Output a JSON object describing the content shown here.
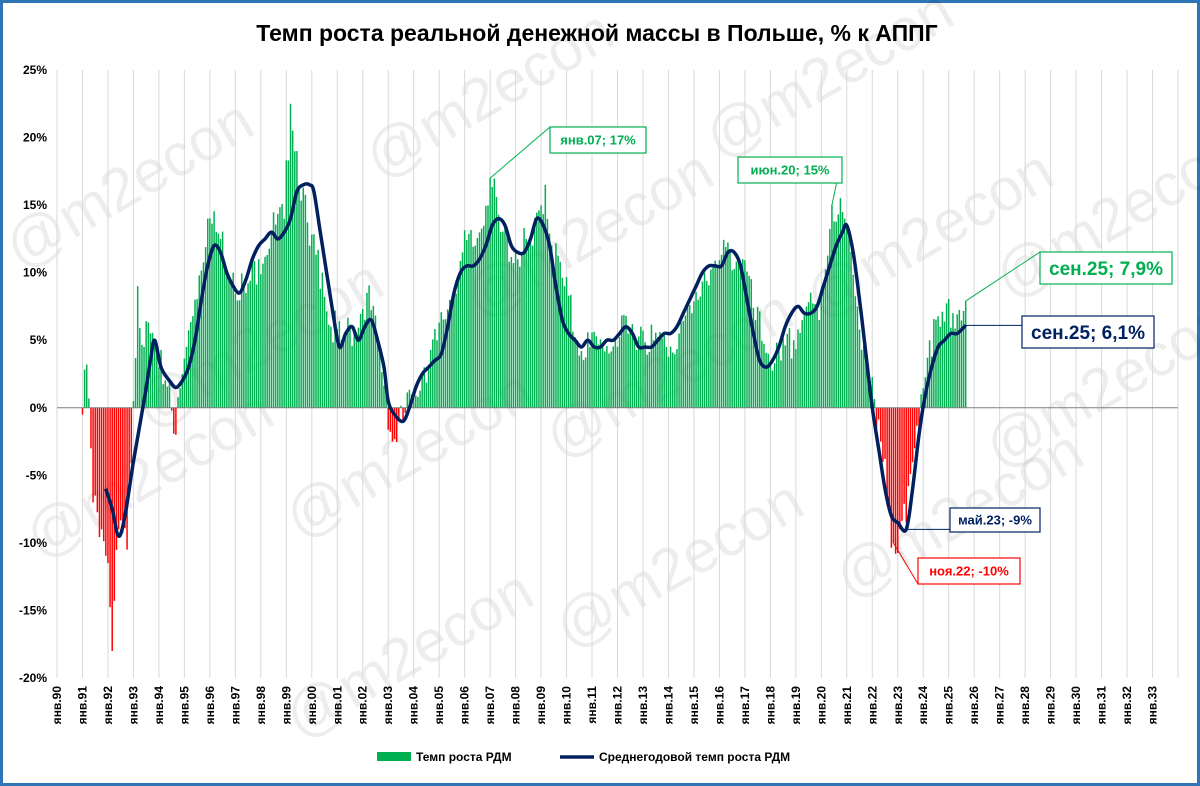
{
  "chart_data": {
    "type": "bar+line",
    "title": "Темп роста реальной денежной массы в Польше, % к АППГ",
    "watermark": "@m2econ",
    "ylim": [
      -20,
      25
    ],
    "yticks": [
      "25%",
      "20%",
      "15%",
      "10%",
      "5%",
      "0%",
      "-5%",
      "-10%",
      "-15%",
      "-20%"
    ],
    "ytick_values": [
      25,
      20,
      15,
      10,
      5,
      0,
      -5,
      -10,
      -15,
      -20
    ],
    "xticks": [
      "янв.90",
      "янв.91",
      "янв.92",
      "янв.93",
      "янв.94",
      "янв.95",
      "янв.96",
      "янв.97",
      "янв.98",
      "янв.99",
      "янв.00",
      "янв.01",
      "янв.02",
      "янв.03",
      "янв.04",
      "янв.05",
      "янв.06",
      "янв.07",
      "янв.08",
      "янв.09",
      "янв.10",
      "янв.11",
      "янв.12",
      "янв.13",
      "янв.14",
      "янв.15",
      "янв.16",
      "янв.17",
      "янв.18",
      "янв.19",
      "янв.20",
      "янв.21",
      "янв.22",
      "янв.23",
      "янв.24",
      "янв.25",
      "янв.26",
      "янв.27",
      "янв.28",
      "янв.29",
      "янв.30",
      "янв.31",
      "янв.32",
      "янв.33"
    ],
    "x_start_year": 1990,
    "x_end_year": 2034,
    "colors": {
      "positive_bar": "#00B050",
      "negative_bar": "#FF0000",
      "line": "#002060",
      "frame": "#2E75B6",
      "grid": "#D9D9D9"
    },
    "series": [
      {
        "name": "Темп роста РДМ",
        "kind": "bar",
        "keypoints": [
          [
            "1991-01",
            -0.5
          ],
          [
            "1991-03",
            3.2
          ],
          [
            "1991-06",
            -7.0
          ],
          [
            "1991-10",
            -9.0
          ],
          [
            "1992-01",
            -11.5
          ],
          [
            "1992-03",
            -18.0
          ],
          [
            "1992-06",
            -9.0
          ],
          [
            "1992-10",
            -10.5
          ],
          [
            "1993-01",
            0.5
          ],
          [
            "1993-03",
            9.0
          ],
          [
            "1993-06",
            4.5
          ],
          [
            "1993-09",
            5.5
          ],
          [
            "1994-01",
            3.0
          ],
          [
            "1994-06",
            2.0
          ],
          [
            "1994-09",
            -2.0
          ],
          [
            "1994-12",
            2.5
          ],
          [
            "1995-06",
            8.0
          ],
          [
            "1995-12",
            14.0
          ],
          [
            "1996-06",
            12.5
          ],
          [
            "1996-12",
            10.0
          ],
          [
            "1997-06",
            8.5
          ],
          [
            "1997-12",
            11.0
          ],
          [
            "1998-06",
            13.0
          ],
          [
            "1998-12",
            14.0
          ],
          [
            "1999-03",
            22.5
          ],
          [
            "1999-06",
            19.0
          ],
          [
            "1999-12",
            12.0
          ],
          [
            "2000-06",
            10.0
          ],
          [
            "2000-10",
            6.0
          ],
          [
            "2001-03",
            5.0
          ],
          [
            "2001-09",
            6.0
          ],
          [
            "2002-03",
            8.5
          ],
          [
            "2002-09",
            4.0
          ],
          [
            "2002-12",
            1.0
          ],
          [
            "2003-03",
            -2.5
          ],
          [
            "2003-08",
            -1.0
          ],
          [
            "2003-12",
            1.0
          ],
          [
            "2004-06",
            3.0
          ],
          [
            "2004-12",
            5.0
          ],
          [
            "2005-06",
            8.0
          ],
          [
            "2005-12",
            11.5
          ],
          [
            "2006-06",
            12.0
          ],
          [
            "2007-01",
            17.0
          ],
          [
            "2007-06",
            13.0
          ],
          [
            "2008-01",
            11.5
          ],
          [
            "2008-09",
            12.0
          ],
          [
            "2009-03",
            16.5
          ],
          [
            "2009-06",
            12.0
          ],
          [
            "2009-12",
            9.0
          ],
          [
            "2010-06",
            5.0
          ],
          [
            "2010-12",
            4.5
          ],
          [
            "2011-06",
            4.5
          ],
          [
            "2011-12",
            5.0
          ],
          [
            "2012-06",
            5.5
          ],
          [
            "2012-12",
            6.0
          ],
          [
            "2013-06",
            5.0
          ],
          [
            "2013-12",
            4.5
          ],
          [
            "2014-06",
            5.5
          ],
          [
            "2014-12",
            7.0
          ],
          [
            "2015-06",
            10.0
          ],
          [
            "2015-12",
            10.5
          ],
          [
            "2016-06",
            11.5
          ],
          [
            "2016-12",
            11.0
          ],
          [
            "2017-06",
            6.5
          ],
          [
            "2017-12",
            4.0
          ],
          [
            "2018-06",
            3.5
          ],
          [
            "2018-12",
            5.0
          ],
          [
            "2019-06",
            7.5
          ],
          [
            "2019-12",
            6.5
          ],
          [
            "2020-06",
            15.0
          ],
          [
            "2020-12",
            14.0
          ],
          [
            "2021-06",
            7.5
          ],
          [
            "2021-12",
            2.0
          ],
          [
            "2022-03",
            -1.5
          ],
          [
            "2022-06",
            -4.0
          ],
          [
            "2022-11",
            -10.0
          ],
          [
            "2023-02",
            -9.0
          ],
          [
            "2023-05",
            -8.5
          ],
          [
            "2023-09",
            -3.0
          ],
          [
            "2023-12",
            1.0
          ],
          [
            "2024-04",
            5.0
          ],
          [
            "2024-09",
            6.0
          ],
          [
            "2025-03",
            7.0
          ],
          [
            "2025-09",
            7.9
          ]
        ]
      },
      {
        "name": "Среднегодовой темп роста РДМ",
        "kind": "line",
        "keypoints": [
          [
            "1991-12",
            -6.0
          ],
          [
            "1992-03",
            -7.5
          ],
          [
            "1992-06",
            -9.5
          ],
          [
            "1992-09",
            -8.0
          ],
          [
            "1993-01",
            -4.0
          ],
          [
            "1993-06",
            0.5
          ],
          [
            "1993-09",
            3.5
          ],
          [
            "1993-11",
            5.0
          ],
          [
            "1994-02",
            3.0
          ],
          [
            "1994-06",
            2.0
          ],
          [
            "1994-09",
            1.5
          ],
          [
            "1994-12",
            2.0
          ],
          [
            "1995-03",
            3.0
          ],
          [
            "1995-06",
            5.0
          ],
          [
            "1995-09",
            8.0
          ],
          [
            "1995-12",
            10.5
          ],
          [
            "1996-03",
            12.0
          ],
          [
            "1996-06",
            11.5
          ],
          [
            "1996-09",
            10.0
          ],
          [
            "1996-12",
            9.0
          ],
          [
            "1997-03",
            8.5
          ],
          [
            "1997-06",
            9.5
          ],
          [
            "1997-09",
            11.0
          ],
          [
            "1997-12",
            12.0
          ],
          [
            "1998-03",
            12.5
          ],
          [
            "1998-06",
            13.0
          ],
          [
            "1998-09",
            12.5
          ],
          [
            "1998-12",
            13.0
          ],
          [
            "1999-03",
            14.0
          ],
          [
            "1999-06",
            16.0
          ],
          [
            "1999-09",
            16.5
          ],
          [
            "1999-12",
            16.5
          ],
          [
            "2000-02",
            16.0
          ],
          [
            "2000-05",
            13.0
          ],
          [
            "2000-08",
            10.0
          ],
          [
            "2000-11",
            7.0
          ],
          [
            "2001-02",
            4.5
          ],
          [
            "2001-05",
            5.5
          ],
          [
            "2001-08",
            6.0
          ],
          [
            "2001-11",
            5.0
          ],
          [
            "2002-02",
            6.0
          ],
          [
            "2002-05",
            6.5
          ],
          [
            "2002-08",
            5.0
          ],
          [
            "2002-11",
            3.0
          ],
          [
            "2003-01",
            0.5
          ],
          [
            "2003-04",
            -0.5
          ],
          [
            "2003-08",
            -1.0
          ],
          [
            "2003-11",
            0.0
          ],
          [
            "2004-02",
            1.5
          ],
          [
            "2004-05",
            2.5
          ],
          [
            "2004-08",
            3.0
          ],
          [
            "2004-11",
            3.5
          ],
          [
            "2005-02",
            4.0
          ],
          [
            "2005-05",
            6.0
          ],
          [
            "2005-08",
            8.5
          ],
          [
            "2005-11",
            10.0
          ],
          [
            "2006-02",
            10.5
          ],
          [
            "2006-05",
            10.5
          ],
          [
            "2006-08",
            11.0
          ],
          [
            "2006-11",
            12.0
          ],
          [
            "2007-02",
            13.5
          ],
          [
            "2007-05",
            14.0
          ],
          [
            "2007-08",
            13.5
          ],
          [
            "2007-11",
            12.0
          ],
          [
            "2008-02",
            11.5
          ],
          [
            "2008-05",
            11.5
          ],
          [
            "2008-08",
            12.5
          ],
          [
            "2008-11",
            14.0
          ],
          [
            "2009-02",
            13.5
          ],
          [
            "2009-05",
            12.0
          ],
          [
            "2009-08",
            9.0
          ],
          [
            "2009-11",
            6.5
          ],
          [
            "2010-02",
            5.5
          ],
          [
            "2010-05",
            5.0
          ],
          [
            "2010-08",
            4.5
          ],
          [
            "2010-11",
            5.0
          ],
          [
            "2011-02",
            4.5
          ],
          [
            "2011-05",
            4.5
          ],
          [
            "2011-08",
            5.0
          ],
          [
            "2011-11",
            5.0
          ],
          [
            "2012-02",
            5.5
          ],
          [
            "2012-05",
            6.0
          ],
          [
            "2012-08",
            5.5
          ],
          [
            "2012-11",
            4.5
          ],
          [
            "2013-02",
            4.5
          ],
          [
            "2013-05",
            4.5
          ],
          [
            "2013-08",
            5.0
          ],
          [
            "2013-11",
            5.5
          ],
          [
            "2014-02",
            5.5
          ],
          [
            "2014-05",
            6.0
          ],
          [
            "2014-08",
            7.0
          ],
          [
            "2014-11",
            8.0
          ],
          [
            "2015-02",
            9.0
          ],
          [
            "2015-05",
            10.0
          ],
          [
            "2015-08",
            10.5
          ],
          [
            "2015-11",
            10.5
          ],
          [
            "2016-02",
            10.5
          ],
          [
            "2016-05",
            11.5
          ],
          [
            "2016-08",
            11.5
          ],
          [
            "2016-11",
            10.5
          ],
          [
            "2017-02",
            8.0
          ],
          [
            "2017-05",
            5.5
          ],
          [
            "2017-08",
            3.5
          ],
          [
            "2017-11",
            3.0
          ],
          [
            "2018-02",
            3.5
          ],
          [
            "2018-05",
            4.5
          ],
          [
            "2018-08",
            6.0
          ],
          [
            "2018-11",
            7.0
          ],
          [
            "2019-02",
            7.5
          ],
          [
            "2019-05",
            7.0
          ],
          [
            "2019-08",
            7.0
          ],
          [
            "2019-11",
            7.5
          ],
          [
            "2020-02",
            9.0
          ],
          [
            "2020-05",
            10.5
          ],
          [
            "2020-08",
            12.0
          ],
          [
            "2020-11",
            13.0
          ],
          [
            "2021-01",
            13.5
          ],
          [
            "2021-04",
            11.5
          ],
          [
            "2021-07",
            8.0
          ],
          [
            "2021-10",
            4.0
          ],
          [
            "2022-01",
            0.0
          ],
          [
            "2022-04",
            -3.0
          ],
          [
            "2022-07",
            -6.0
          ],
          [
            "2022-10",
            -8.0
          ],
          [
            "2023-01",
            -8.5
          ],
          [
            "2023-05",
            -9.0
          ],
          [
            "2023-08",
            -6.0
          ],
          [
            "2023-11",
            -2.0
          ],
          [
            "2024-02",
            1.0
          ],
          [
            "2024-05",
            3.0
          ],
          [
            "2024-08",
            4.5
          ],
          [
            "2024-11",
            5.0
          ],
          [
            "2025-02",
            5.5
          ],
          [
            "2025-05",
            5.5
          ],
          [
            "2025-09",
            6.1
          ]
        ]
      }
    ],
    "legend": {
      "placement": "bottom",
      "entries": [
        "Темп роста РДМ",
        "Среднегодовой темп роста РДМ"
      ]
    },
    "grid": "vertical",
    "annotations": [
      {
        "text": "янв.07; 17%",
        "date": "2007-01",
        "value": 17,
        "color": "#00B050",
        "size": "small"
      },
      {
        "text": "июн.20; 15%",
        "date": "2020-06",
        "value": 15,
        "color": "#00B050",
        "size": "small"
      },
      {
        "text": "сен.25; 7,9%",
        "date": "2025-09",
        "value": 7.9,
        "color": "#00B050",
        "size": "large"
      },
      {
        "text": "сен.25; 6,1%",
        "date": "2025-09",
        "value": 6.1,
        "color": "#002060",
        "size": "large"
      },
      {
        "text": "май.23; -9%",
        "date": "2023-05",
        "value": -9,
        "color": "#002060",
        "size": "small"
      },
      {
        "text": "ноя.22; -10%",
        "date": "2022-11",
        "value": -10,
        "color": "#FF0000",
        "size": "small"
      }
    ]
  }
}
